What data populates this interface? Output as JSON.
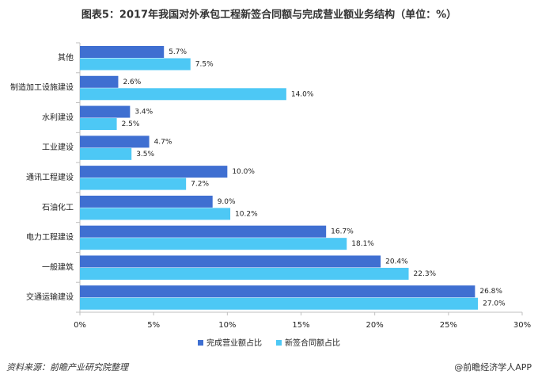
{
  "chart_data": {
    "type": "hbar",
    "title": "图表5：2017年我国对外承包工程新签合同额与完成营业额业务结构（单位：%）",
    "categories": [
      "其他",
      "制造加工设施建设",
      "水利建设",
      "工业建设",
      "通讯工程建设",
      "石油化工",
      "电力工程建设",
      "一般建筑",
      "交通运输建设"
    ],
    "series": [
      {
        "name": "完成营业额占比",
        "color": "#3f6fd1",
        "values": [
          5.7,
          2.6,
          3.4,
          4.7,
          10.0,
          9.0,
          16.7,
          20.4,
          26.8
        ],
        "value_labels": [
          "5.7%",
          "2.6%",
          "3.4%",
          "4.7%",
          "10.0%",
          "9.0%",
          "16.7%",
          "20.4%",
          "26.8%"
        ]
      },
      {
        "name": "新签合同额占比",
        "color": "#4dc8f5",
        "values": [
          7.5,
          14.0,
          2.5,
          3.5,
          7.2,
          10.2,
          18.1,
          22.3,
          27.0
        ],
        "value_labels": [
          "7.5%",
          "14.0%",
          "2.5%",
          "3.5%",
          "7.2%",
          "10.2%",
          "18.1%",
          "22.3%",
          "27.0%"
        ]
      }
    ],
    "xlim": [
      0,
      30
    ],
    "xticks": [
      {
        "value": 0,
        "label": "0%"
      },
      {
        "value": 5,
        "label": "5%"
      },
      {
        "value": 10,
        "label": "10%"
      },
      {
        "value": 15,
        "label": "15%"
      },
      {
        "value": 20,
        "label": "20%"
      },
      {
        "value": 25,
        "label": "25%"
      },
      {
        "value": 30,
        "label": "30%"
      }
    ],
    "legend": "bottom",
    "source": "资料来源：前瞻产业研究院整理",
    "credit": "@前瞻经济学人APP"
  }
}
